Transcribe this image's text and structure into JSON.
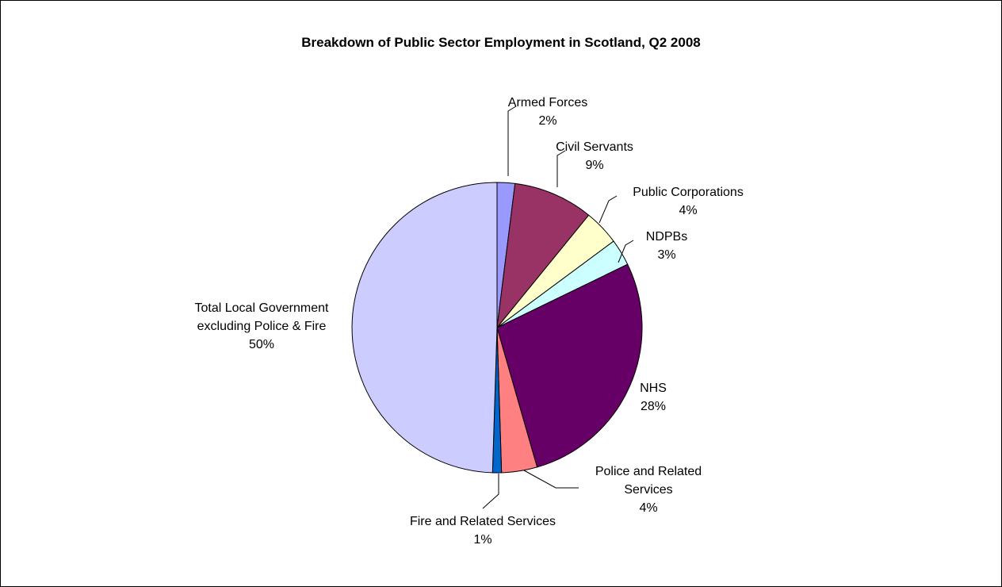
{
  "chart_data": {
    "type": "pie",
    "title": "Breakdown of Public Sector Employment in Scotland, Q2 2008",
    "slices": [
      {
        "name": "Armed Forces",
        "value": 2,
        "label": "2%",
        "color": "#9999FF"
      },
      {
        "name": "Civil Servants",
        "value": 9,
        "label": "9%",
        "color": "#993366"
      },
      {
        "name": "Public Corporations",
        "value": 4,
        "label": "4%",
        "color": "#FFFFCC"
      },
      {
        "name": "NDPBs",
        "value": 3,
        "label": "3%",
        "color": "#CCFFFF"
      },
      {
        "name": "NHS",
        "value": 28,
        "label": "28%",
        "color": "#660066"
      },
      {
        "name": "Police and Related Services",
        "value": 4,
        "label": "4%",
        "color": "#FF8080"
      },
      {
        "name": "Fire and Related Services",
        "value": 1,
        "label": "1%",
        "color": "#0066CC"
      },
      {
        "name": "Total Local Government excluding Police & Fire",
        "value": 50,
        "label": "50%",
        "color": "#CCCCFF"
      }
    ],
    "legend": "none"
  }
}
